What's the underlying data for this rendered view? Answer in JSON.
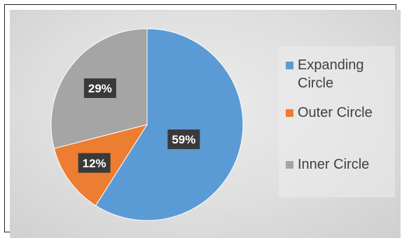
{
  "chart_data": {
    "type": "pie",
    "categories": [
      "Expanding Circle",
      "Outer Circle",
      "Inner Circle"
    ],
    "values": [
      59,
      12,
      29
    ],
    "data_labels": [
      "59%",
      "12%",
      "29%"
    ],
    "colors": [
      "#5b9bd5",
      "#ed7d31",
      "#a5a5a5"
    ],
    "start_angle_deg": 0,
    "direction": "clockwise",
    "legend": {
      "placement": "right",
      "items": [
        {
          "label": "Expanding Circle",
          "color": "#5b9bd5"
        },
        {
          "label": "Outer Circle",
          "color": "#ed7d31"
        },
        {
          "label": "Inner Circle",
          "color": "#a5a5a5"
        }
      ]
    }
  }
}
